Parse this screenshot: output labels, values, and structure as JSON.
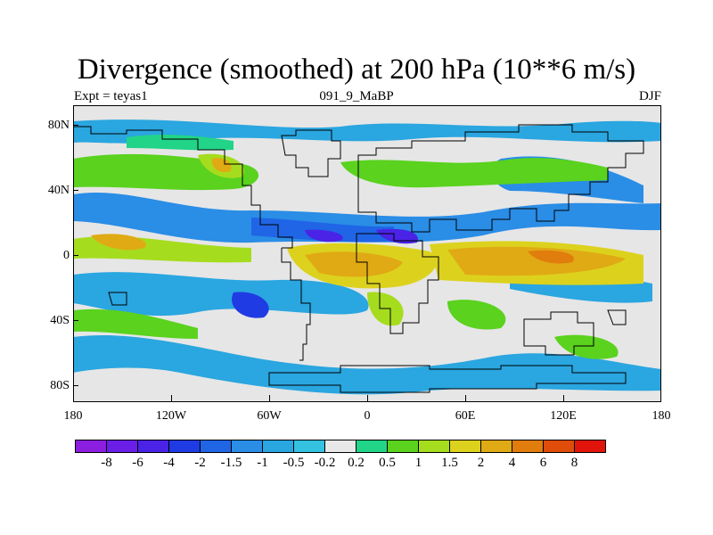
{
  "title": "Divergence (smoothed) at 200 hPa (10**6 m/s)",
  "subtitle": {
    "left": "Expt = teyas1",
    "center": "091_9_MaBP",
    "right": "DJF"
  },
  "axes": {
    "y_ticks": [
      "80N",
      "40N",
      "0",
      "40S",
      "80S"
    ],
    "x_ticks": [
      "180",
      "120W",
      "60W",
      "0",
      "60E",
      "120E",
      "180"
    ]
  },
  "colorbar": {
    "colors": [
      "#8c1ee0",
      "#6a1ee8",
      "#4a23e6",
      "#1f3be3",
      "#1f65e6",
      "#2a8de6",
      "#2aa6e0",
      "#34c2e0",
      "#e8e8e8",
      "#22d487",
      "#5ad21e",
      "#a6dc1e",
      "#dcd21e",
      "#e0aa14",
      "#e07d0c",
      "#e04c0a",
      "#e0140a"
    ],
    "labels": [
      "-8",
      "-6",
      "-4",
      "-2",
      "-1.5",
      "-1",
      "-0.5",
      "-0.2",
      "0.2",
      "0.5",
      "1",
      "1.5",
      "2",
      "4",
      "6",
      "8"
    ]
  },
  "map": {
    "lon_range": [
      -180,
      180
    ],
    "lat_range": [
      -90,
      90
    ],
    "projection": "cylindrical-equidistant"
  }
}
